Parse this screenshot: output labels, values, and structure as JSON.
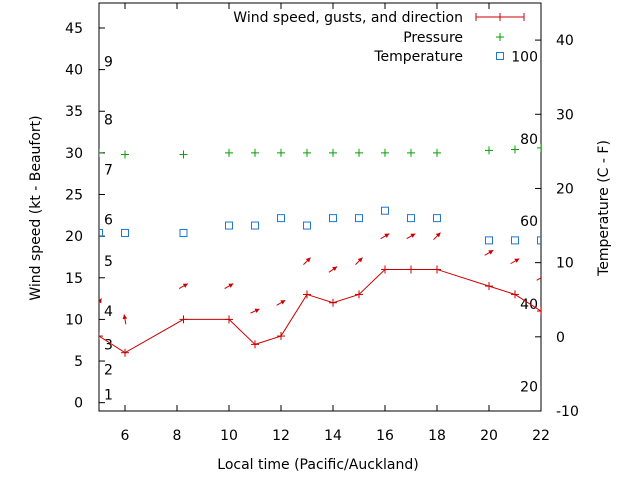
{
  "chart_data": {
    "type": "line",
    "xlabel": "Local time (Pacific/Auckland)",
    "ylabel_left": "Wind speed (kt - Beaufort)",
    "ylabel_right": "Temperature (C - F)",
    "x_range": [
      5,
      22
    ],
    "x_ticks": [
      6,
      8,
      10,
      12,
      14,
      16,
      18,
      20,
      22
    ],
    "y_left_range": [
      -1,
      48
    ],
    "y_left_ticks": [
      0,
      5,
      10,
      15,
      20,
      25,
      30,
      35,
      40,
      45
    ],
    "y_right_range": [
      -10,
      45
    ],
    "y_right_ticks": [
      -10,
      0,
      10,
      20,
      30,
      40
    ],
    "beaufort_scale": [
      {
        "label": "1",
        "kt": 1
      },
      {
        "label": "2",
        "kt": 4
      },
      {
        "label": "3",
        "kt": 7
      },
      {
        "label": "4",
        "kt": 11
      },
      {
        "label": "5",
        "kt": 17
      },
      {
        "label": "6",
        "kt": 22
      },
      {
        "label": "7",
        "kt": 28
      },
      {
        "label": "8",
        "kt": 34
      },
      {
        "label": "9",
        "kt": 41
      }
    ],
    "fahrenheit_scale": [
      {
        "label": "20",
        "c": -6.7
      },
      {
        "label": "40",
        "c": 4.4
      },
      {
        "label": "60",
        "c": 15.6
      },
      {
        "label": "80",
        "c": 26.7
      },
      {
        "label": "100",
        "c": 37.8
      }
    ],
    "legend_position": "top-right",
    "series": [
      {
        "name": "Wind speed, gusts, and direction",
        "color": "#cc0000",
        "x": [
          5,
          6,
          8.25,
          10,
          11,
          12,
          13,
          14,
          15,
          16,
          17,
          18,
          20,
          21,
          22
        ],
        "values": [
          8,
          6,
          10,
          10,
          7,
          8,
          13,
          12,
          13,
          16,
          16,
          16,
          14,
          13,
          11
        ]
      },
      {
        "name": "Pressure",
        "color": "#00a000",
        "x": [
          5,
          6,
          8.25,
          10,
          11,
          12,
          13,
          14,
          15,
          16,
          17,
          18,
          20,
          21,
          22
        ],
        "values": [
          30,
          29.8,
          29.8,
          30,
          30,
          30,
          30,
          30,
          30,
          30,
          30,
          30,
          30.3,
          30.4,
          30.6
        ]
      },
      {
        "name": "Temperature",
        "color": "#1f77d0",
        "x": [
          5,
          6,
          8.25,
          10,
          11,
          12,
          13,
          14,
          15,
          16,
          17,
          18,
          20,
          21,
          22
        ],
        "values": [
          14,
          14,
          14,
          15,
          15,
          16,
          15,
          16,
          16,
          17,
          16,
          16,
          13,
          13,
          13
        ]
      }
    ],
    "wind_arrows": {
      "x": [
        5,
        6,
        8.25,
        10,
        11,
        12,
        13,
        14,
        15,
        16,
        17,
        18,
        20,
        21,
        22
      ],
      "direction_deg": [
        30,
        350,
        60,
        60,
        65,
        60,
        45,
        55,
        45,
        60,
        60,
        45,
        60,
        60,
        60
      ]
    }
  }
}
